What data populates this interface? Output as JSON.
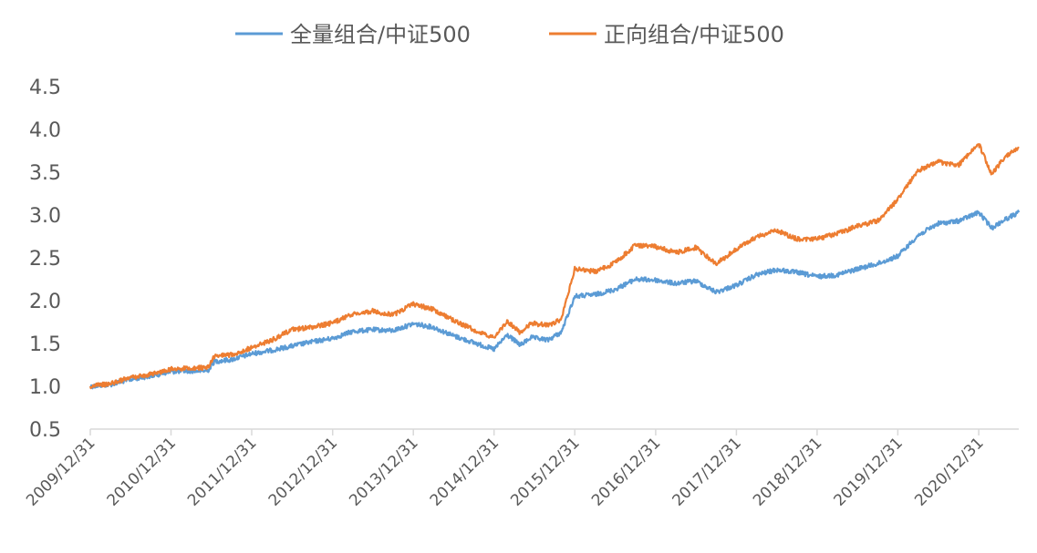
{
  "chart_data": {
    "type": "line",
    "title": "",
    "xlabel": "",
    "ylabel": "",
    "ylim": [
      0.5,
      4.5
    ],
    "yticks": [
      "0.5",
      "1.0",
      "1.5",
      "2.0",
      "2.5",
      "3.0",
      "3.5",
      "4.0",
      "4.5"
    ],
    "xticks": [
      "2009/12/31",
      "2010/12/31",
      "2011/12/31",
      "2012/12/31",
      "2013/12/31",
      "2014/12/31",
      "2015/12/31",
      "2016/12/31",
      "2017/12/31",
      "2018/12/31",
      "2019/12/31",
      "2020/12/31"
    ],
    "xlim": [
      "2009/12/31",
      "2021/06/30"
    ],
    "grid": false,
    "legend_position": "top",
    "series": [
      {
        "name": "全量组合/中证500",
        "color": "#5B9BD5",
        "points": [
          [
            "2009/12/31",
            1.0
          ],
          [
            "2010/03/31",
            1.02
          ],
          [
            "2010/06/30",
            1.08
          ],
          [
            "2010/09/30",
            1.12
          ],
          [
            "2010/12/31",
            1.17
          ],
          [
            "2011/03/31",
            1.18
          ],
          [
            "2011/06/15",
            1.18
          ],
          [
            "2011/07/15",
            1.29
          ],
          [
            "2011/09/30",
            1.31
          ],
          [
            "2011/12/31",
            1.38
          ],
          [
            "2012/03/31",
            1.42
          ],
          [
            "2012/06/30",
            1.47
          ],
          [
            "2012/09/30",
            1.52
          ],
          [
            "2012/12/31",
            1.56
          ],
          [
            "2013/03/31",
            1.64
          ],
          [
            "2013/06/30",
            1.66
          ],
          [
            "2013/09/30",
            1.65
          ],
          [
            "2013/12/31",
            1.73
          ],
          [
            "2014/03/31",
            1.69
          ],
          [
            "2014/06/30",
            1.59
          ],
          [
            "2014/09/30",
            1.51
          ],
          [
            "2014/12/31",
            1.43
          ],
          [
            "2015/02/28",
            1.6
          ],
          [
            "2015/04/30",
            1.48
          ],
          [
            "2015/06/15",
            1.57
          ],
          [
            "2015/08/31",
            1.54
          ],
          [
            "2015/10/31",
            1.63
          ],
          [
            "2015/12/31",
            2.05
          ],
          [
            "2016/03/31",
            2.07
          ],
          [
            "2016/06/30",
            2.13
          ],
          [
            "2016/09/30",
            2.25
          ],
          [
            "2016/12/31",
            2.24
          ],
          [
            "2017/03/31",
            2.2
          ],
          [
            "2017/06/30",
            2.23
          ],
          [
            "2017/09/30",
            2.1
          ],
          [
            "2017/12/31",
            2.18
          ],
          [
            "2018/03/31",
            2.3
          ],
          [
            "2018/06/30",
            2.36
          ],
          [
            "2018/09/30",
            2.33
          ],
          [
            "2018/12/31",
            2.28
          ],
          [
            "2019/03/31",
            2.3
          ],
          [
            "2019/06/30",
            2.37
          ],
          [
            "2019/09/30",
            2.43
          ],
          [
            "2019/12/31",
            2.52
          ],
          [
            "2020/03/31",
            2.76
          ],
          [
            "2020/06/30",
            2.9
          ],
          [
            "2020/09/30",
            2.93
          ],
          [
            "2020/12/31",
            3.03
          ],
          [
            "2021/02/28",
            2.85
          ],
          [
            "2021/04/30",
            2.95
          ],
          [
            "2021/06/30",
            3.03
          ]
        ]
      },
      {
        "name": "正向组合/中证500",
        "color": "#ED7D31",
        "points": [
          [
            "2009/12/31",
            1.0
          ],
          [
            "2010/03/31",
            1.03
          ],
          [
            "2010/06/30",
            1.1
          ],
          [
            "2010/09/30",
            1.14
          ],
          [
            "2010/12/31",
            1.2
          ],
          [
            "2011/03/31",
            1.21
          ],
          [
            "2011/06/15",
            1.22
          ],
          [
            "2011/07/15",
            1.35
          ],
          [
            "2011/09/30",
            1.37
          ],
          [
            "2011/12/31",
            1.45
          ],
          [
            "2012/03/31",
            1.54
          ],
          [
            "2012/06/30",
            1.66
          ],
          [
            "2012/09/30",
            1.69
          ],
          [
            "2012/12/31",
            1.74
          ],
          [
            "2013/03/31",
            1.84
          ],
          [
            "2013/06/30",
            1.88
          ],
          [
            "2013/09/30",
            1.83
          ],
          [
            "2013/12/31",
            1.96
          ],
          [
            "2014/03/31",
            1.9
          ],
          [
            "2014/06/30",
            1.77
          ],
          [
            "2014/09/30",
            1.66
          ],
          [
            "2014/12/31",
            1.56
          ],
          [
            "2015/02/28",
            1.76
          ],
          [
            "2015/04/30",
            1.62
          ],
          [
            "2015/06/15",
            1.74
          ],
          [
            "2015/08/31",
            1.71
          ],
          [
            "2015/10/31",
            1.78
          ],
          [
            "2015/12/31",
            2.37
          ],
          [
            "2016/03/31",
            2.34
          ],
          [
            "2016/06/30",
            2.44
          ],
          [
            "2016/09/30",
            2.65
          ],
          [
            "2016/12/31",
            2.63
          ],
          [
            "2017/03/31",
            2.56
          ],
          [
            "2017/06/30",
            2.62
          ],
          [
            "2017/09/30",
            2.43
          ],
          [
            "2017/12/31",
            2.6
          ],
          [
            "2018/03/31",
            2.74
          ],
          [
            "2018/06/30",
            2.82
          ],
          [
            "2018/09/30",
            2.72
          ],
          [
            "2018/12/31",
            2.72
          ],
          [
            "2019/03/31",
            2.78
          ],
          [
            "2019/06/30",
            2.87
          ],
          [
            "2019/09/30",
            2.93
          ],
          [
            "2019/12/31",
            3.18
          ],
          [
            "2020/03/31",
            3.52
          ],
          [
            "2020/06/30",
            3.62
          ],
          [
            "2020/09/30",
            3.58
          ],
          [
            "2020/12/31",
            3.83
          ],
          [
            "2021/02/28",
            3.48
          ],
          [
            "2021/04/30",
            3.68
          ],
          [
            "2021/06/30",
            3.78
          ]
        ]
      }
    ]
  }
}
